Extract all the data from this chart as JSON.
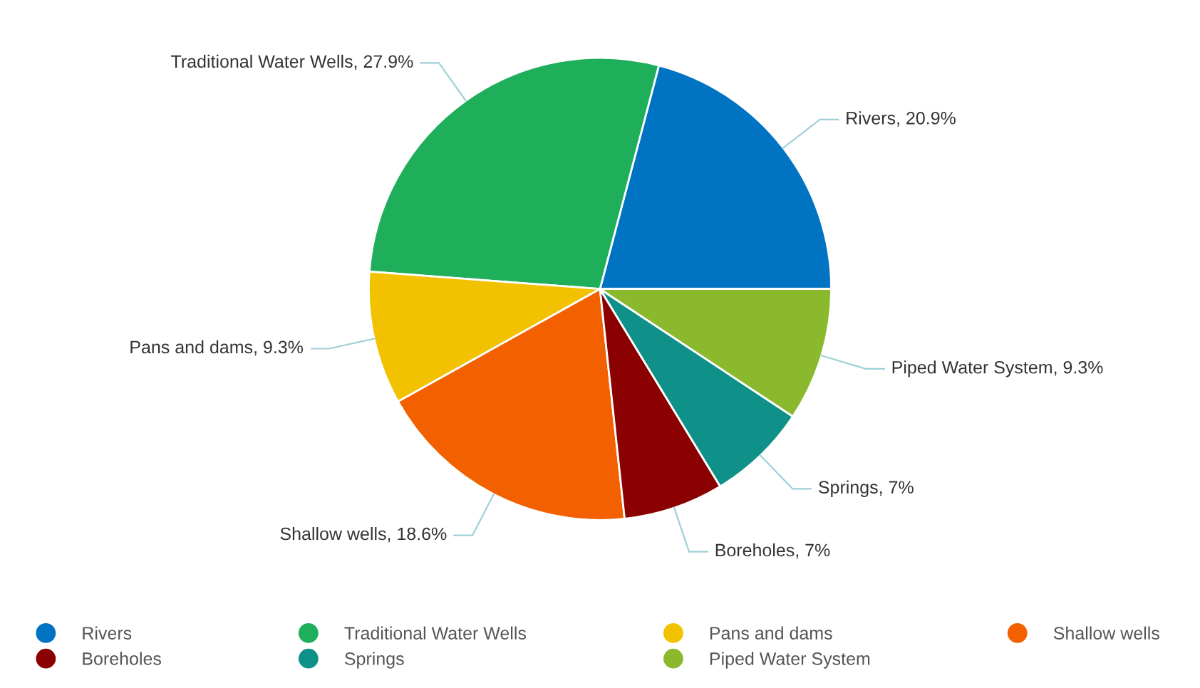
{
  "chart_data": {
    "type": "pie",
    "categories": [
      "Rivers",
      "Traditional Water Wells",
      "Pans and dams",
      "Shallow wells",
      "Boreholes",
      "Springs",
      "Piped Water System"
    ],
    "values": [
      20.9,
      27.9,
      9.3,
      18.6,
      7,
      7,
      9.3
    ],
    "value_labels": [
      ", 20.9%",
      ", 27.9%",
      ", 9.3%",
      ", 18.6%",
      ", 7%",
      ", 7%",
      ", 9.3%"
    ],
    "colors": [
      "#0073c2",
      "#1fae5a",
      "#f2c200",
      "#f26000",
      "#8b0000",
      "#0f9088",
      "#8ab92d"
    ],
    "legend": "bottom"
  }
}
